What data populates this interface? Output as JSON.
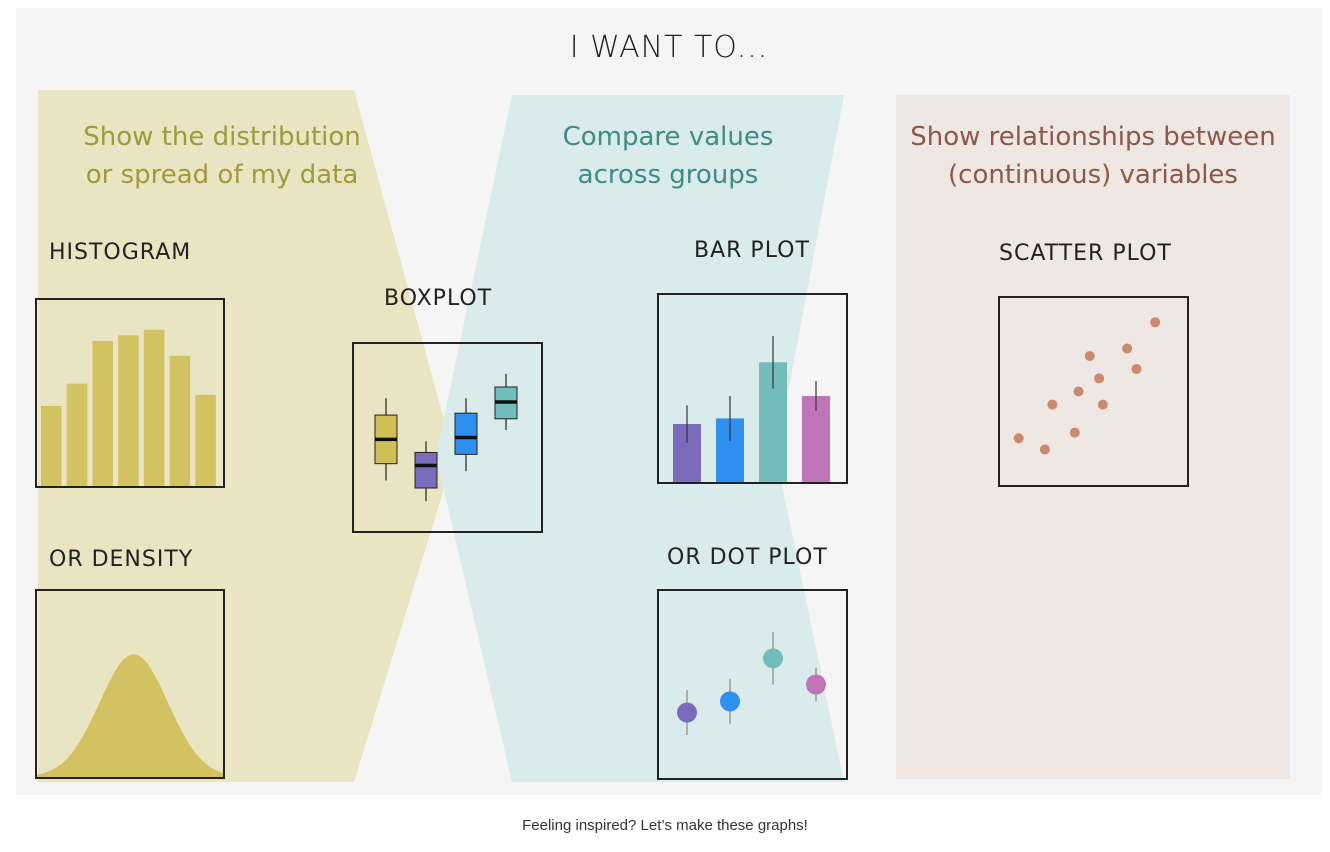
{
  "title": "I WANT TO...",
  "sections": [
    {
      "heading_line1": "Show the distribution",
      "heading_line2": "or spread of my data",
      "color": "#a19a3c",
      "band": "#e9e5c2"
    },
    {
      "heading_line1": "Compare values",
      "heading_line2": "across groups",
      "color": "#3f8c87",
      "band": "#d9ebea"
    },
    {
      "heading_line1": "Show relationships between",
      "heading_line2": "(continuous) variables",
      "color": "#8a5a48",
      "band": "#efe7e3"
    }
  ],
  "plots": {
    "histogram": {
      "label": "HISTOGRAM",
      "color": "#d2c262",
      "values": [
        0.43,
        0.55,
        0.78,
        0.81,
        0.84,
        0.7,
        0.49
      ]
    },
    "density": {
      "label": "OR DENSITY",
      "color": "#d2c262"
    },
    "boxplot": {
      "label": "BOXPLOT",
      "boxes": [
        {
          "color": "#cdbf55",
          "low": 0.27,
          "q1": 0.36,
          "median": 0.49,
          "q3": 0.62,
          "high": 0.71
        },
        {
          "color": "#7b6bbd",
          "low": 0.16,
          "q1": 0.23,
          "median": 0.35,
          "q3": 0.42,
          "high": 0.48
        },
        {
          "color": "#3090f0",
          "low": 0.32,
          "q1": 0.41,
          "median": 0.5,
          "q3": 0.63,
          "high": 0.71
        },
        {
          "color": "#72bcbc",
          "low": 0.54,
          "q1": 0.6,
          "median": 0.69,
          "q3": 0.77,
          "high": 0.84
        }
      ]
    },
    "barplot": {
      "label": "BAR PLOT",
      "bars": [
        {
          "color": "#7b6bbd",
          "value": 0.31,
          "err": 0.1
        },
        {
          "color": "#3090f0",
          "value": 0.34,
          "err": 0.12
        },
        {
          "color": "#72bcbc",
          "value": 0.64,
          "err": 0.14
        },
        {
          "color": "#c075b8",
          "value": 0.46,
          "err": 0.08
        }
      ]
    },
    "dotplot": {
      "label": "OR DOT PLOT",
      "dots": [
        {
          "color": "#7b6bbd",
          "value": 0.35,
          "err": 0.12
        },
        {
          "color": "#3090f0",
          "value": 0.41,
          "err": 0.12
        },
        {
          "color": "#72bcbc",
          "value": 0.64,
          "err": 0.14
        },
        {
          "color": "#c075b8",
          "value": 0.5,
          "err": 0.09
        }
      ]
    },
    "scatter": {
      "label": "SCATTER PLOT",
      "color": "#c98a70",
      "points": [
        [
          0.1,
          0.25
        ],
        [
          0.24,
          0.19
        ],
        [
          0.28,
          0.43
        ],
        [
          0.4,
          0.28
        ],
        [
          0.42,
          0.5
        ],
        [
          0.48,
          0.69
        ],
        [
          0.53,
          0.57
        ],
        [
          0.55,
          0.43
        ],
        [
          0.68,
          0.73
        ],
        [
          0.73,
          0.62
        ],
        [
          0.83,
          0.87
        ]
      ]
    }
  },
  "caption": "Feeling inspired? Let’s make these graphs!"
}
